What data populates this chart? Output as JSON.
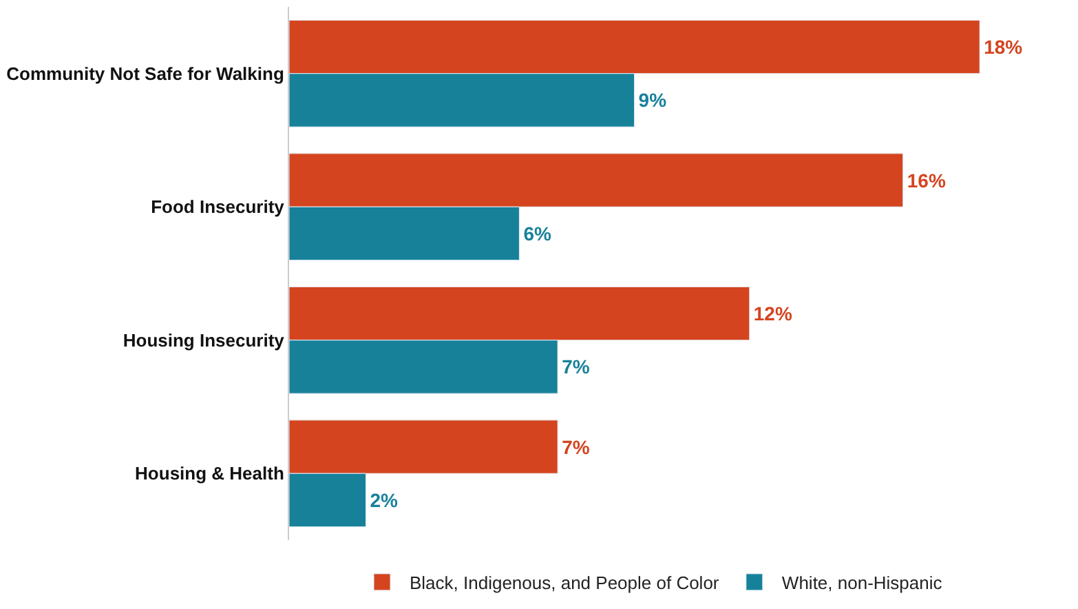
{
  "chart_data": {
    "type": "bar",
    "orientation": "horizontal",
    "categories": [
      "Community Not Safe for Walking",
      "Food Insecurity",
      "Housing Insecurity",
      "Housing & Health"
    ],
    "series": [
      {
        "name": "Black, Indigenous, and People of Color",
        "color": "#d4441f",
        "values": [
          18,
          16,
          12,
          7
        ],
        "value_labels": [
          "18%",
          "16%",
          "12%",
          "7%"
        ]
      },
      {
        "name": "White, non-Hispanic",
        "color": "#17819a",
        "values": [
          9,
          6,
          7,
          2
        ],
        "value_labels": [
          "9%",
          "6%",
          "7%",
          "2%"
        ]
      }
    ],
    "legend": "bottom",
    "tick_labels": "y"
  }
}
